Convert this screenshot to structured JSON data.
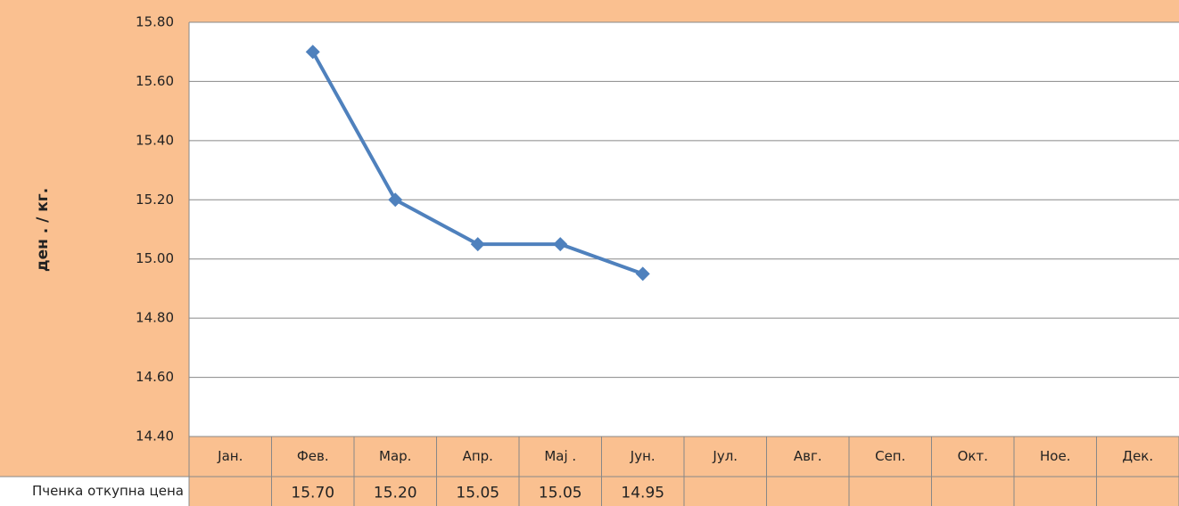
{
  "chart_data": {
    "type": "line",
    "y_label": "ден . / кг.",
    "categories": [
      "Јан.",
      "Фев.",
      "Мар.",
      "Апр.",
      "Мај .",
      "Јун.",
      "Јул.",
      "Авг.",
      "Сеп.",
      "Окт.",
      "Ное.",
      "Дек."
    ],
    "series": [
      {
        "name": "Пченка откупна цена",
        "color": "#4f81bd",
        "values": [
          null,
          15.7,
          15.2,
          15.05,
          15.05,
          14.95,
          null,
          null,
          null,
          null,
          null,
          null
        ],
        "value_labels": [
          null,
          "15.70",
          "15.20",
          "15.05",
          "15.05",
          "14.95",
          null,
          null,
          null,
          null,
          null,
          null
        ]
      }
    ],
    "ylim": [
      14.4,
      15.8
    ],
    "yticks": [
      {
        "value": 14.4,
        "label": "14.40"
      },
      {
        "value": 14.6,
        "label": "14.60"
      },
      {
        "value": 14.8,
        "label": "14.80"
      },
      {
        "value": 15.0,
        "label": "15.00"
      },
      {
        "value": 15.2,
        "label": "15.20"
      },
      {
        "value": 15.4,
        "label": "15.40"
      },
      {
        "value": 15.6,
        "label": "15.60"
      },
      {
        "value": 15.8,
        "label": "15.80"
      }
    ],
    "grid": true
  }
}
